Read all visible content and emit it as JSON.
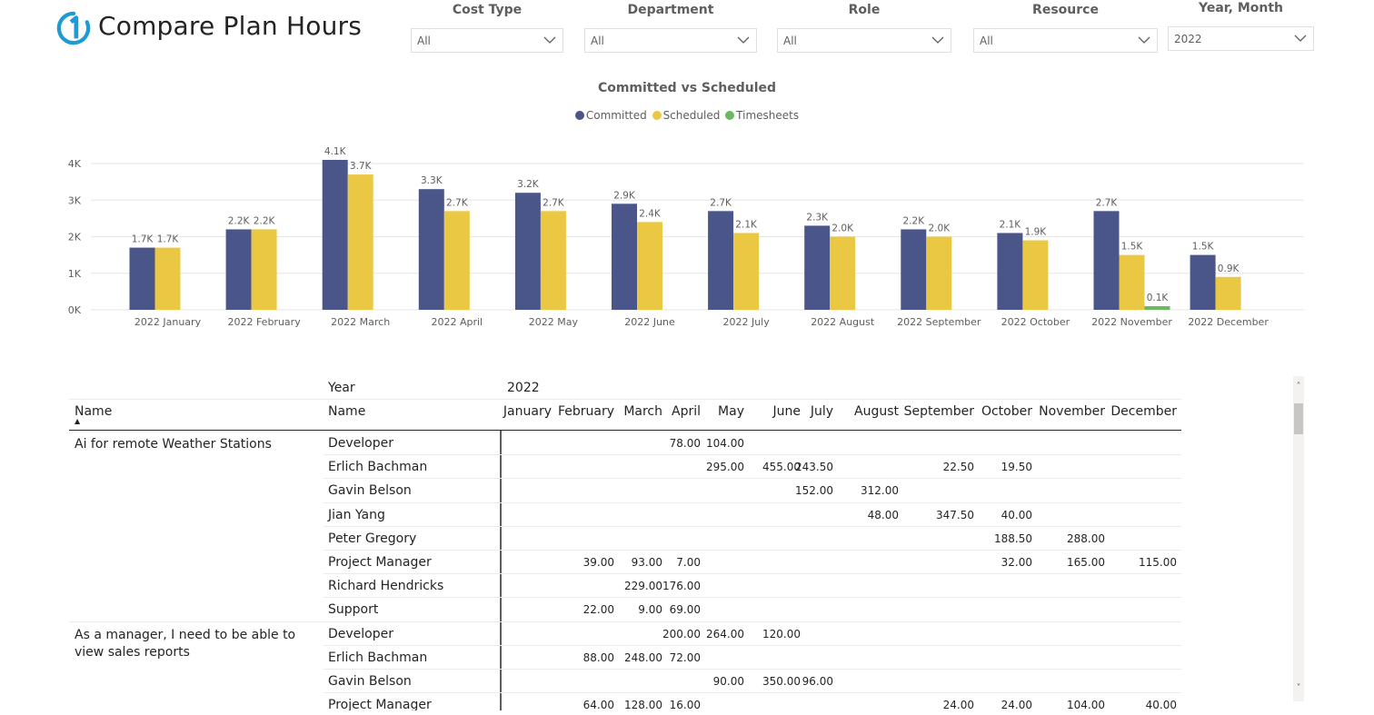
{
  "header": {
    "title": "Compare Plan Hours",
    "logo": "numeral-one-logo-icon"
  },
  "filters": [
    {
      "label": "Cost Type",
      "value": "All"
    },
    {
      "label": "Department",
      "value": "All"
    },
    {
      "label": "Role",
      "value": "All"
    },
    {
      "label": "Resource",
      "value": "All"
    },
    {
      "label": "Year, Month",
      "value": "2022"
    }
  ],
  "colors": {
    "committed": "#4a558a",
    "scheduled": "#ebc844",
    "timesheets": "#6cb961",
    "accent": "#1e9bd7"
  },
  "chart_data": {
    "type": "bar",
    "title": "Committed vs Scheduled",
    "legend": [
      "Committed",
      "Scheduled",
      "Timesheets"
    ],
    "legend_position": "top-center",
    "categories": [
      "2022 January",
      "2022 February",
      "2022 March",
      "2022 April",
      "2022 May",
      "2022 June",
      "2022 July",
      "2022 August",
      "2022 September",
      "2022 October",
      "2022 November",
      "2022 December"
    ],
    "series": [
      {
        "name": "Committed",
        "values": [
          1700,
          2200,
          4100,
          3300,
          3200,
          2900,
          2700,
          2300,
          2200,
          2100,
          2700,
          1500
        ],
        "labels": [
          "1.7K",
          "2.2K",
          "4.1K",
          "3.3K",
          "3.2K",
          "2.9K",
          "2.7K",
          "2.3K",
          "2.2K",
          "2.1K",
          "2.7K",
          "1.5K"
        ]
      },
      {
        "name": "Scheduled",
        "values": [
          1700,
          2200,
          3700,
          2700,
          2700,
          2400,
          2100,
          2000,
          2000,
          1900,
          1500,
          900
        ],
        "labels": [
          "1.7K",
          "2.2K",
          "3.7K",
          "2.7K",
          "2.7K",
          "2.4K",
          "2.1K",
          "2.0K",
          "2.0K",
          "1.9K",
          "1.5K",
          "0.9K"
        ]
      },
      {
        "name": "Timesheets",
        "values": [
          null,
          null,
          null,
          null,
          null,
          null,
          null,
          null,
          null,
          null,
          100,
          null
        ],
        "labels": [
          "",
          "",
          "",
          "",
          "",
          "",
          "",
          "",
          "",
          "",
          "0.1K",
          ""
        ]
      }
    ],
    "yticks": [
      0,
      1000,
      2000,
      3000,
      4000
    ],
    "ytick_labels": [
      "0K",
      "1K",
      "2K",
      "3K",
      "4K"
    ],
    "ylim": [
      0,
      4300
    ],
    "grid": true,
    "xlabel": "",
    "ylabel": ""
  },
  "matrix": {
    "year_header": "Year",
    "year_value": "2022",
    "name_header_1": "Name",
    "name_header_2": "Name",
    "sort_indicator": "▲",
    "months": [
      "January",
      "February",
      "March",
      "April",
      "May",
      "June",
      "July",
      "August",
      "September",
      "October",
      "November",
      "December"
    ],
    "rows": [
      {
        "group": "Ai for remote Weather Stations",
        "name": "Developer",
        "values": [
          "",
          "",
          "",
          "78.00",
          "104.00",
          "",
          "",
          "",
          "",
          "",
          "",
          ""
        ]
      },
      {
        "group": "",
        "name": "Erlich Bachman",
        "values": [
          "",
          "",
          "",
          "",
          "295.00",
          "455.00",
          "243.50",
          "",
          "22.50",
          "19.50",
          "",
          ""
        ]
      },
      {
        "group": "",
        "name": "Gavin Belson",
        "values": [
          "",
          "",
          "",
          "",
          "",
          "",
          "152.00",
          "312.00",
          "",
          "",
          "",
          ""
        ]
      },
      {
        "group": "",
        "name": "Jian Yang",
        "values": [
          "",
          "",
          "",
          "",
          "",
          "",
          "",
          "48.00",
          "347.50",
          "40.00",
          "",
          ""
        ]
      },
      {
        "group": "",
        "name": "Peter Gregory",
        "values": [
          "",
          "",
          "",
          "",
          "",
          "",
          "",
          "",
          "",
          "188.50",
          "288.00",
          ""
        ]
      },
      {
        "group": "",
        "name": "Project Manager",
        "values": [
          "",
          "39.00",
          "93.00",
          "7.00",
          "",
          "",
          "",
          "",
          "",
          "32.00",
          "165.00",
          "115.00"
        ]
      },
      {
        "group": "",
        "name": "Richard Hendricks",
        "values": [
          "",
          "",
          "229.00",
          "176.00",
          "",
          "",
          "",
          "",
          "",
          "",
          "",
          ""
        ]
      },
      {
        "group": "",
        "name": "Support",
        "values": [
          "",
          "22.00",
          "9.00",
          "69.00",
          "",
          "",
          "",
          "",
          "",
          "",
          "",
          ""
        ]
      },
      {
        "group": "As a manager, I need to be able to view sales reports",
        "name": "Developer",
        "values": [
          "",
          "",
          "",
          "200.00",
          "264.00",
          "120.00",
          "",
          "",
          "",
          "",
          "",
          ""
        ]
      },
      {
        "group": "",
        "name": "Erlich Bachman",
        "values": [
          "",
          "88.00",
          "248.00",
          "72.00",
          "",
          "",
          "",
          "",
          "",
          "",
          "",
          ""
        ]
      },
      {
        "group": "",
        "name": "Gavin Belson",
        "values": [
          "",
          "",
          "",
          "",
          "90.00",
          "350.00",
          "96.00",
          "",
          "",
          "",
          "",
          ""
        ]
      },
      {
        "group": "",
        "name": "Project Manager",
        "values": [
          "",
          "64.00",
          "128.00",
          "16.00",
          "",
          "",
          "",
          "",
          "24.00",
          "24.00",
          "104.00",
          "40.00"
        ]
      }
    ]
  },
  "scrollbar": {
    "up": "˄",
    "down": "˅"
  }
}
